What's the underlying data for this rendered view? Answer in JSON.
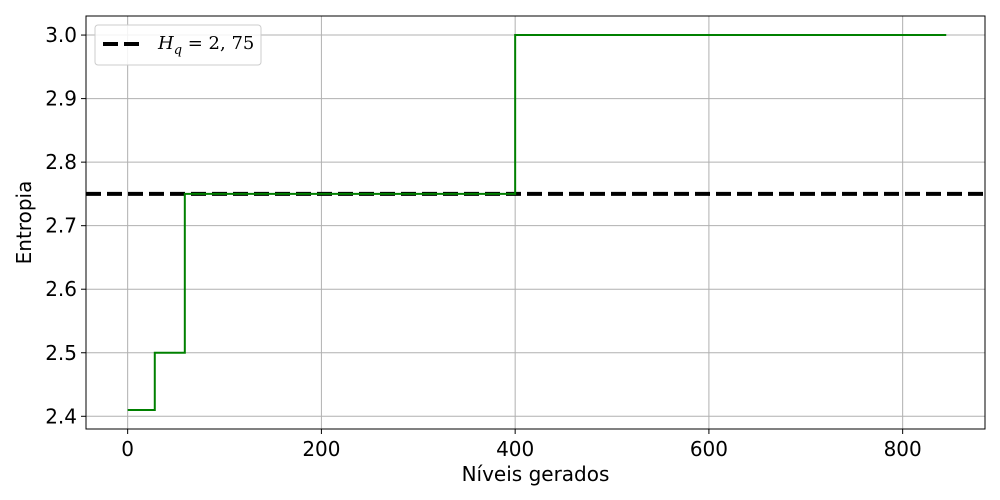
{
  "chart_data": {
    "type": "line",
    "xlabel": "Níveis gerados",
    "ylabel": "Entropia",
    "xlim": [
      -43,
      885
    ],
    "ylim": [
      2.38,
      3.03
    ],
    "xticks": [
      0,
      200,
      400,
      600,
      800
    ],
    "xtick_labels": [
      "0",
      "200",
      "400",
      "600",
      "800"
    ],
    "yticks": [
      2.4,
      2.5,
      2.6,
      2.7,
      2.8,
      2.9,
      3.0
    ],
    "ytick_labels": [
      "2.4",
      "2.5",
      "2.6",
      "2.7",
      "2.8",
      "2.9",
      "3.0"
    ],
    "grid": true,
    "legend_position": "top-left",
    "series": [
      {
        "color": "#008000",
        "style": "step",
        "x": [
          0,
          28,
          28,
          59,
          59,
          400,
          400,
          845
        ],
        "y": [
          2.41,
          2.41,
          2.5,
          2.5,
          2.75,
          2.75,
          3.0,
          3.0
        ]
      }
    ],
    "reference_lines": [
      {
        "name": "H_q = 2,75",
        "legend_label": "Hq = 2, 75",
        "y": 2.75,
        "color": "#000000",
        "linestyle": "dashed"
      }
    ]
  }
}
